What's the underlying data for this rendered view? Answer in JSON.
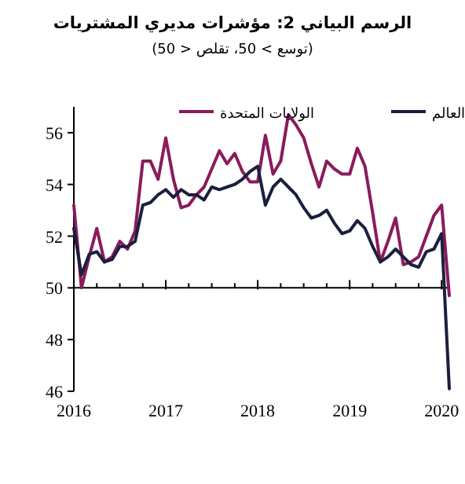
{
  "chart_data": {
    "type": "line",
    "title": "الرسم البياني 2: مؤشرات مديري المشتريات",
    "subtitle": "(توسع > 50، تقلص < 50)",
    "x": [
      "2016-01",
      "2016-02",
      "2016-03",
      "2016-04",
      "2016-05",
      "2016-06",
      "2016-07",
      "2016-08",
      "2016-09",
      "2016-10",
      "2016-11",
      "2016-12",
      "2017-01",
      "2017-02",
      "2017-03",
      "2017-04",
      "2017-05",
      "2017-06",
      "2017-07",
      "2017-08",
      "2017-09",
      "2017-10",
      "2017-11",
      "2017-12",
      "2018-01",
      "2018-02",
      "2018-03",
      "2018-04",
      "2018-05",
      "2018-06",
      "2018-07",
      "2018-08",
      "2018-09",
      "2018-10",
      "2018-11",
      "2018-12",
      "2019-01",
      "2019-02",
      "2019-03",
      "2019-04",
      "2019-05",
      "2019-06",
      "2019-07",
      "2019-08",
      "2019-09",
      "2019-10",
      "2019-11",
      "2019-12",
      "2020-01",
      "2020-02"
    ],
    "series": [
      {
        "name": "الولايات المتحدة",
        "color": "#8b1a5c",
        "values": [
          53.2,
          50.0,
          51.2,
          52.3,
          51.0,
          51.2,
          51.8,
          51.5,
          52.2,
          54.9,
          54.9,
          54.2,
          55.8,
          54.2,
          53.1,
          53.2,
          53.6,
          53.9,
          54.6,
          55.3,
          54.8,
          55.2,
          54.5,
          54.1,
          54.1,
          55.9,
          54.4,
          54.9,
          56.7,
          56.3,
          55.8,
          54.8,
          53.9,
          54.9,
          54.6,
          54.4,
          54.4,
          55.4,
          54.7,
          52.9,
          51.0,
          51.8,
          52.7,
          50.9,
          51.0,
          51.2,
          52.0,
          52.8,
          53.2,
          49.7
        ]
      },
      {
        "name": "العالم",
        "color": "#1b1f3f",
        "values": [
          52.3,
          50.5,
          51.3,
          51.4,
          51.0,
          51.1,
          51.6,
          51.6,
          51.8,
          53.2,
          53.3,
          53.6,
          53.8,
          53.5,
          53.8,
          53.6,
          53.6,
          53.4,
          53.9,
          53.8,
          53.9,
          54.0,
          54.2,
          54.5,
          54.7,
          53.2,
          53.9,
          54.2,
          53.9,
          53.6,
          53.1,
          52.7,
          52.8,
          53.0,
          52.5,
          52.1,
          52.2,
          52.6,
          52.3,
          51.6,
          51.0,
          51.2,
          51.5,
          51.2,
          50.9,
          50.8,
          51.4,
          51.5,
          52.1,
          46.1
        ]
      }
    ],
    "xlim": [
      "2016-01",
      "2020-02"
    ],
    "xticks": [
      {
        "value": "2016-01",
        "label": "2016"
      },
      {
        "value": "2017-01",
        "label": "2017"
      },
      {
        "value": "2018-01",
        "label": "2018"
      },
      {
        "value": "2019-01",
        "label": "2019"
      },
      {
        "value": "2020-01",
        "label": "2020"
      }
    ],
    "ylim": [
      46,
      57
    ],
    "yticks": [
      46,
      48,
      50,
      52,
      54,
      56
    ],
    "ref_lines": [
      {
        "axis": "y",
        "value": 50,
        "color": "#000000"
      }
    ],
    "legend": "top",
    "marker": "none",
    "line_style": "solid",
    "grid": false
  }
}
